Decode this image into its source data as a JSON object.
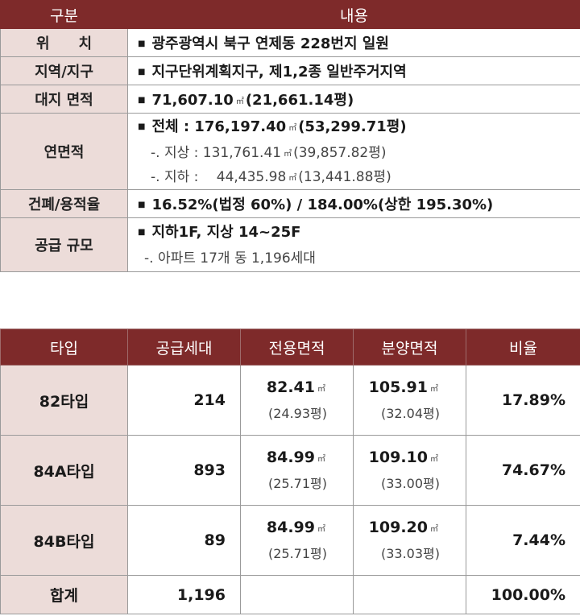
{
  "info_table": {
    "headers": [
      "구분",
      "내용"
    ],
    "rows": {
      "location": {
        "label": "위　　치",
        "value": "광주광역시 북구 연제동 228번지 일원"
      },
      "zone": {
        "label": "지역/지구",
        "value": "지구단위계획지구, 제1,2종 일반주거지역"
      },
      "site_area": {
        "label": "대지 면적",
        "value": "71,607.10",
        "unit": "㎡",
        "extra": "(21,661.14평)"
      },
      "floor_area": {
        "label": "연면적",
        "total": {
          "text": "전체 : 176,197.40",
          "unit": "㎡",
          "extra": "(53,299.71평)"
        },
        "above": {
          "text": "-. 지상 : 131,761.41",
          "unit": "㎡",
          "extra": "(39,857.82평)"
        },
        "below": {
          "text": "-. 지하 :　 44,435.98",
          "unit": "㎡",
          "extra": "(13,441.88평)"
        }
      },
      "ratio": {
        "label": "건폐/용적율",
        "value": "16.52%(법정 60%) / 184.00%(상한 195.30%)"
      },
      "scale": {
        "label": "공급 규모",
        "value": "지하1F, 지상 14~25F",
        "sub": "-. 아파트 17개 동 1,196세대"
      }
    }
  },
  "type_table": {
    "headers": [
      "타입",
      "공급세대",
      "전용면적",
      "분양면적",
      "비율"
    ],
    "unit": "㎡",
    "rows": [
      {
        "type": "82타입",
        "units": "214",
        "excl_area": "82.41",
        "excl_pyeong": "(24.93평)",
        "sale_area": "105.91",
        "sale_pyeong": "(32.04평)",
        "ratio": "17.89%"
      },
      {
        "type": "84A타입",
        "units": "893",
        "excl_area": "84.99",
        "excl_pyeong": "(25.71평)",
        "sale_area": "109.10",
        "sale_pyeong": "(33.00평)",
        "ratio": "74.67%"
      },
      {
        "type": "84B타입",
        "units": "89",
        "excl_area": "84.99",
        "excl_pyeong": "(25.71평)",
        "sale_area": "109.20",
        "sale_pyeong": "(33.03평)",
        "ratio": "7.44%"
      }
    ],
    "total": {
      "label": "합계",
      "units": "1,196",
      "ratio": "100.00%"
    }
  },
  "colors": {
    "header_bg": "#7e2a2a",
    "label_bg": "#ecdcd9"
  }
}
